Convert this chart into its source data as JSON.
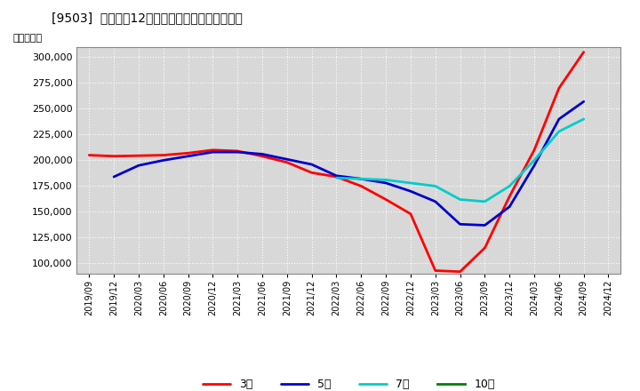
{
  "title": "[9503]  経常利益12か月移動合計の平均値の推移",
  "ylabel": "（百万円）",
  "ylim": [
    90000,
    310000
  ],
  "yticks": [
    100000,
    125000,
    150000,
    175000,
    200000,
    225000,
    250000,
    275000,
    300000
  ],
  "background_color": "#ffffff",
  "plot_bg_color": "#d8d8d8",
  "grid_color": "#ffffff",
  "x_labels": [
    "2019/09",
    "2019/12",
    "2020/03",
    "2020/06",
    "2020/09",
    "2020/12",
    "2021/03",
    "2021/06",
    "2021/09",
    "2021/12",
    "2022/03",
    "2022/06",
    "2022/09",
    "2022/12",
    "2023/03",
    "2023/06",
    "2023/09",
    "2023/12",
    "2024/03",
    "2024/06",
    "2024/09",
    "2024/12"
  ],
  "series": {
    "3年": {
      "color": "#ff0000",
      "data_x": [
        0,
        1,
        2,
        3,
        4,
        5,
        6,
        7,
        8,
        9,
        10,
        11,
        12,
        13,
        14,
        15,
        16,
        17,
        18,
        19,
        20
      ],
      "data_y": [
        205000,
        204000,
        204500,
        205000,
        207000,
        210000,
        209000,
        204000,
        198000,
        188000,
        184000,
        175000,
        162000,
        148000,
        93000,
        92000,
        115000,
        165000,
        210000,
        270000,
        305000
      ]
    },
    "5年": {
      "color": "#0000cc",
      "data_x": [
        1,
        2,
        3,
        4,
        5,
        6,
        7,
        8,
        9,
        10,
        11,
        12,
        13,
        14,
        15,
        16,
        17,
        18,
        19,
        20
      ],
      "data_y": [
        184000,
        195000,
        200000,
        204000,
        208000,
        208000,
        206000,
        201000,
        196000,
        185000,
        182000,
        178000,
        170000,
        160000,
        138000,
        137000,
        155000,
        195000,
        240000,
        257000
      ]
    },
    "7年": {
      "color": "#00cccc",
      "data_x": [
        10,
        11,
        12,
        13,
        14,
        15,
        16,
        17,
        18,
        19,
        20
      ],
      "data_y": [
        183000,
        182000,
        181000,
        178000,
        175000,
        162000,
        160000,
        175000,
        200000,
        228000,
        240000
      ]
    },
    "10年": {
      "color": "#008000",
      "data_x": [],
      "data_y": []
    }
  }
}
